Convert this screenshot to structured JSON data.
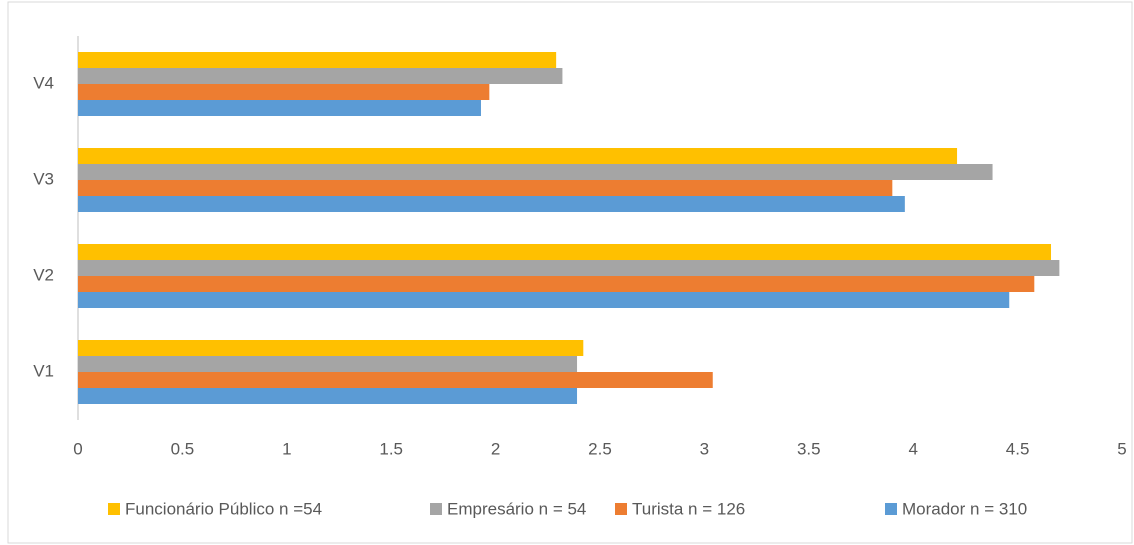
{
  "chart_data": {
    "type": "bar",
    "orientation": "horizontal",
    "categories": [
      "V1",
      "V2",
      "V3",
      "V4"
    ],
    "series": [
      {
        "name": "Funcionário Público n =54",
        "color": "#ffc000",
        "values": [
          2.42,
          4.66,
          4.21,
          2.29
        ]
      },
      {
        "name": "Empresário n = 54",
        "color": "#a5a5a5",
        "values": [
          2.39,
          4.7,
          4.38,
          2.32
        ]
      },
      {
        "name": "Turista n = 126",
        "color": "#ed7d31",
        "values": [
          3.04,
          4.58,
          3.9,
          1.97
        ]
      },
      {
        "name": "Morador n = 310",
        "color": "#5b9bd5",
        "values": [
          2.39,
          4.46,
          3.96,
          1.93
        ]
      }
    ],
    "xlim": [
      0,
      5
    ],
    "xticks": [
      0,
      0.5,
      1,
      1.5,
      2,
      2.5,
      3,
      3.5,
      4,
      4.5,
      5
    ],
    "grid": false,
    "legend": "bottom"
  }
}
